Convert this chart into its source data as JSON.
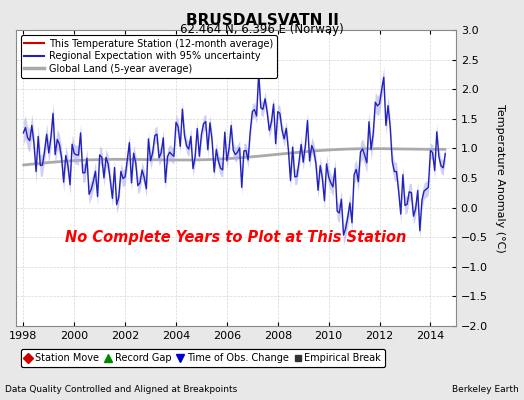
{
  "title": "BRUSDALSVATN II",
  "subtitle": "62.464 N, 6.396 E (Norway)",
  "xlabel_left": "Data Quality Controlled and Aligned at Breakpoints",
  "xlabel_right": "Berkeley Earth",
  "ylabel": "Temperature Anomaly (°C)",
  "no_data_text": "No Complete Years to Plot at This Station",
  "xlim": [
    1997.7,
    2015.0
  ],
  "ylim": [
    -2.0,
    3.0
  ],
  "xticks": [
    1998,
    2000,
    2002,
    2004,
    2006,
    2008,
    2010,
    2012,
    2014
  ],
  "yticks": [
    -2,
    -1.5,
    -1,
    -0.5,
    0,
    0.5,
    1,
    1.5,
    2,
    2.5,
    3
  ],
  "background_color": "#e8e8e8",
  "plot_bg_color": "#ffffff",
  "regional_color": "#2222bb",
  "regional_fill_color": "#aaaaee",
  "station_color": "#dd0000",
  "global_color": "#aaaaaa",
  "legend_items": [
    {
      "label": "This Temperature Station (12-month average)",
      "color": "#cc0000",
      "lw": 1.5
    },
    {
      "label": "Regional Expectation with 95% uncertainty",
      "color": "#2222bb",
      "lw": 1.5
    },
    {
      "label": "Global Land (5-year average)",
      "color": "#aaaaaa",
      "lw": 2.5
    }
  ],
  "bottom_legend_items": [
    {
      "label": "Station Move",
      "marker": "D",
      "color": "#cc0000"
    },
    {
      "label": "Record Gap",
      "marker": "^",
      "color": "#008800"
    },
    {
      "label": "Time of Obs. Change",
      "marker": "v",
      "color": "#0000cc"
    },
    {
      "label": "Empirical Break",
      "marker": "s",
      "color": "#333333"
    }
  ]
}
